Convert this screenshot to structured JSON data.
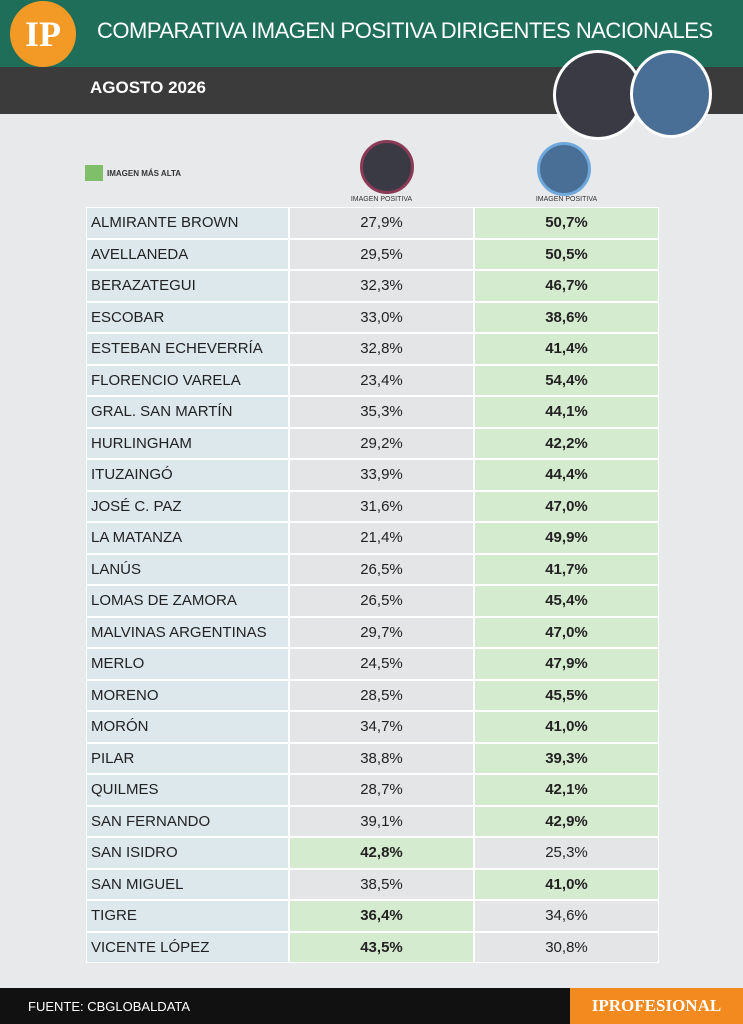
{
  "header": {
    "logo": "IP",
    "title": "COMPARATIVA IMAGEN POSITIVA DIRIGENTES NACIONALES",
    "date": "AGOSTO 2026"
  },
  "legend": {
    "label": "IMAGEN MÁS ALTA"
  },
  "table": {
    "columns": [
      "IMAGEN POSITIVA",
      "IMAGEN POSITIVA"
    ],
    "rows": [
      [
        "ALMIRANTE BROWN",
        "27,9%",
        "50,7%"
      ],
      [
        "AVELLANEDA",
        "29,5%",
        "50,5%"
      ],
      [
        "BERAZATEGUI",
        "32,3%",
        "46,7%"
      ],
      [
        "ESCOBAR",
        "33,0%",
        "38,6%"
      ],
      [
        "ESTEBAN ECHEVERRÍA",
        "32,8%",
        "41,4%"
      ],
      [
        "FLORENCIO VARELA",
        "23,4%",
        "54,4%"
      ],
      [
        "GRAL. SAN MARTÍN",
        "35,3%",
        "44,1%"
      ],
      [
        "HURLINGHAM",
        "29,2%",
        "42,2%"
      ],
      [
        "ITUZAINGÓ",
        "33,9%",
        "44,4%"
      ],
      [
        "JOSÉ C. PAZ",
        "31,6%",
        "47,0%"
      ],
      [
        "LA MATANZA",
        "21,4%",
        "49,9%"
      ],
      [
        "LANÚS",
        "26,5%",
        "41,7%"
      ],
      [
        "LOMAS DE ZAMORA",
        "26,5%",
        "45,4%"
      ],
      [
        "MALVINAS ARGENTINAS",
        "29,7%",
        "47,0%"
      ],
      [
        "MERLO",
        "24,5%",
        "47,9%"
      ],
      [
        "MORENO",
        "28,5%",
        "45,5%"
      ],
      [
        "MORÓN",
        "34,7%",
        "41,0%"
      ],
      [
        "PILAR",
        "38,8%",
        "39,3%"
      ],
      [
        "QUILMES",
        "28,7%",
        "42,1%"
      ],
      [
        "SAN FERNANDO",
        "39,1%",
        "42,9%"
      ],
      [
        "SAN ISIDRO",
        "42,8%",
        "25,3%"
      ],
      [
        "SAN MIGUEL",
        "38,5%",
        "41,0%"
      ],
      [
        "TIGRE",
        "36,4%",
        "34,6%"
      ],
      [
        "VICENTE LÓPEZ",
        "43,5%",
        "30,8%"
      ]
    ]
  },
  "footer": {
    "source": "FUENTE: CBGLOBALDATA",
    "brand": "IPROFESIONAL"
  }
}
